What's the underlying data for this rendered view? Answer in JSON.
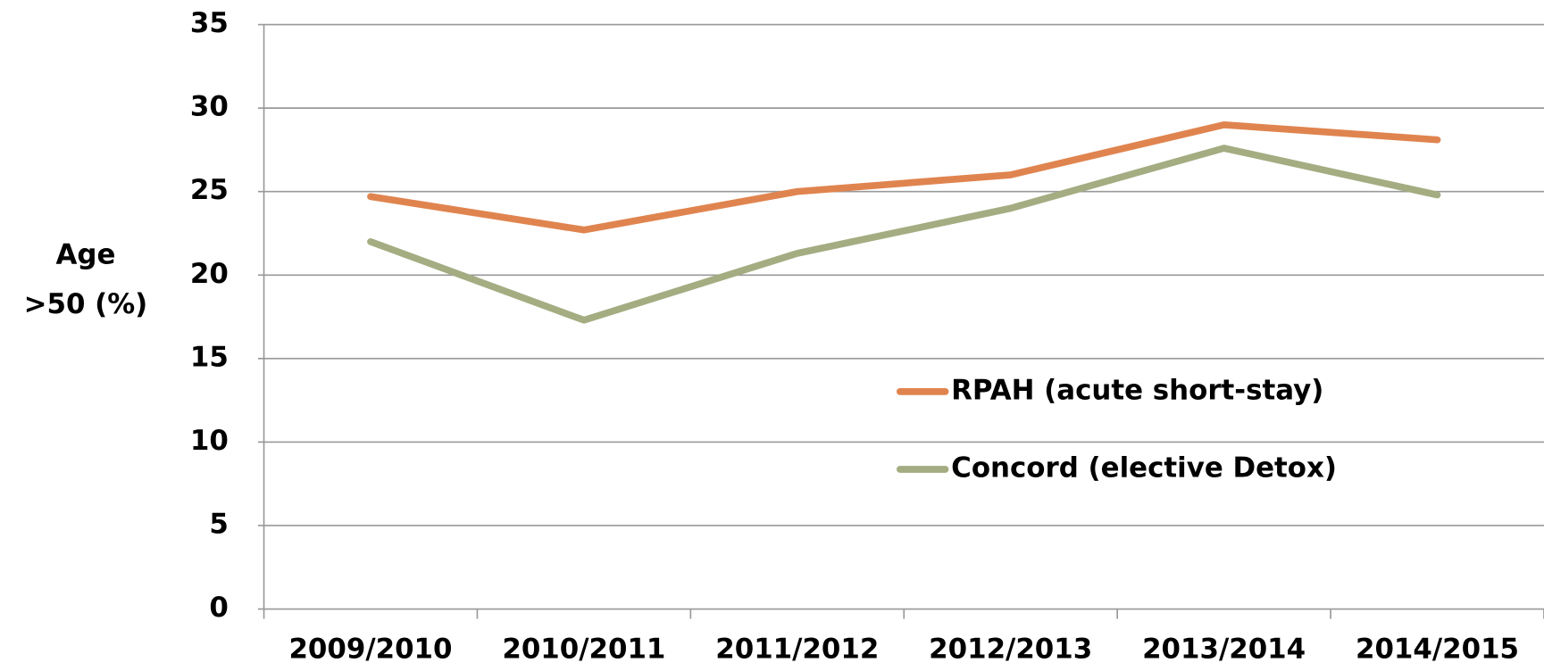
{
  "chart_data": {
    "type": "line",
    "y_label": "Age >50 (%)",
    "categories": [
      "2009/2010",
      "2010/2011",
      "2011/2012",
      "2012/2013",
      "2013/2014",
      "2014/2015"
    ],
    "series": [
      {
        "name": "RPAH (acute short-stay)",
        "color": "#e0844f",
        "values": [
          24.7,
          22.7,
          25.0,
          26.0,
          29.0,
          28.1
        ]
      },
      {
        "name": "Concord (elective Detox)",
        "color": "#a4ac82",
        "values": [
          22.0,
          17.3,
          21.3,
          24.0,
          27.6,
          24.8
        ]
      }
    ],
    "ylim": [
      0,
      35
    ],
    "yticks": [
      0,
      5,
      10,
      15,
      20,
      25,
      30,
      35
    ],
    "grid": true,
    "legend": "right"
  }
}
